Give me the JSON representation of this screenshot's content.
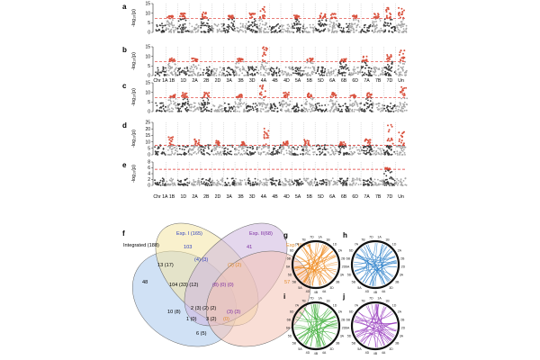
{
  "figure": {
    "panel_labels": [
      "a",
      "b",
      "c",
      "d",
      "e",
      "f",
      "g",
      "h",
      "i",
      "j"
    ],
    "chromosomes": [
      "Chr 1A",
      "1B",
      "1D",
      "2A",
      "2B",
      "2D",
      "3A",
      "3B",
      "3D",
      "4A",
      "4B",
      "4D",
      "5A",
      "5B",
      "5D",
      "6A",
      "6B",
      "6D",
      "7A",
      "7B",
      "7D",
      "Un"
    ],
    "ylabel": "-log₁₀(p)",
    "colors": {
      "dark": "#3a3a3a",
      "light": "#a6a6a6",
      "sig": "#d9533f",
      "threshold": "#e0322c"
    }
  },
  "chart_data": [
    {
      "type": "scatter",
      "panel": "a",
      "ylim": [
        0,
        15
      ],
      "yticks": [
        "0",
        "5",
        "10",
        "15"
      ],
      "threshold": 7.3,
      "xlabel": "",
      "ylabel": "-log₁₀(p)",
      "peaks": [
        {
          "chr": "1B",
          "height": 9
        },
        {
          "chr": "1D",
          "height": 10
        },
        {
          "chr": "2B",
          "height": 11
        },
        {
          "chr": "3A",
          "height": 9
        },
        {
          "chr": "3D",
          "height": 10
        },
        {
          "chr": "4A",
          "height": 14
        },
        {
          "chr": "5A",
          "height": 9
        },
        {
          "chr": "5D",
          "height": 10
        },
        {
          "chr": "6A",
          "height": 10
        },
        {
          "chr": "6D",
          "height": 9
        },
        {
          "chr": "7B",
          "height": 10
        },
        {
          "chr": "7D",
          "height": 13
        },
        {
          "chr": "Un",
          "height": 13
        }
      ]
    },
    {
      "type": "scatter",
      "panel": "b",
      "ylim": [
        0,
        15
      ],
      "yticks": [
        "0",
        "5",
        "10",
        "15"
      ],
      "threshold": 7.3,
      "xlabel": "",
      "ylabel": "-log₁₀(p)",
      "peaks": [
        {
          "chr": "1B",
          "height": 9
        },
        {
          "chr": "2A",
          "height": 9
        },
        {
          "chr": "3B",
          "height": 9
        },
        {
          "chr": "4A",
          "height": 15
        },
        {
          "chr": "5B",
          "height": 9
        },
        {
          "chr": "6B",
          "height": 9
        },
        {
          "chr": "7A",
          "height": 10
        },
        {
          "chr": "7D",
          "height": 11
        },
        {
          "chr": "Un",
          "height": 14
        }
      ]
    },
    {
      "type": "scatter",
      "panel": "c",
      "ylim": [
        0,
        15
      ],
      "yticks": [
        "0",
        "5",
        "10",
        "15"
      ],
      "threshold": 7.3,
      "xlabel": "",
      "ylabel": "-log₁₀(p)",
      "peaks": [
        {
          "chr": "1B",
          "height": 9
        },
        {
          "chr": "1D",
          "height": 10
        },
        {
          "chr": "2B",
          "height": 10
        },
        {
          "chr": "3B",
          "height": 9
        },
        {
          "chr": "4A",
          "height": 14
        },
        {
          "chr": "4D",
          "height": 10
        },
        {
          "chr": "5B",
          "height": 10
        },
        {
          "chr": "6A",
          "height": 10
        },
        {
          "chr": "6D",
          "height": 9
        },
        {
          "chr": "7A",
          "height": 11
        },
        {
          "chr": "Un",
          "height": 13
        }
      ]
    },
    {
      "type": "scatter",
      "panel": "d",
      "ylim": [
        0,
        25
      ],
      "yticks": [
        "0",
        "5",
        "10",
        "15",
        "20",
        "25"
      ],
      "threshold": 7.3,
      "xlabel": "",
      "ylabel": "-log₁₀(p)",
      "peaks": [
        {
          "chr": "1B",
          "height": 14
        },
        {
          "chr": "2A",
          "height": 12
        },
        {
          "chr": "2D",
          "height": 11
        },
        {
          "chr": "3B",
          "height": 10
        },
        {
          "chr": "4A",
          "height": 22
        },
        {
          "chr": "4D",
          "height": 11
        },
        {
          "chr": "5B",
          "height": 12
        },
        {
          "chr": "6B",
          "height": 10
        },
        {
          "chr": "7A",
          "height": 13
        },
        {
          "chr": "7D",
          "height": 24
        },
        {
          "chr": "Un",
          "height": 18
        }
      ]
    },
    {
      "type": "scatter",
      "panel": "e",
      "ylim": [
        0,
        8
      ],
      "yticks": [
        "0",
        "2",
        "4",
        "6",
        "8"
      ],
      "threshold": 5.5,
      "xlabel": "",
      "ylabel": "-log₁₀(p)",
      "peaks": [
        {
          "chr": "7D",
          "height": 6
        }
      ]
    }
  ],
  "venn": {
    "sets": [
      {
        "label": "Integrated (188)",
        "color": "#000000",
        "fill": "#a9c8ec"
      },
      {
        "label": "Exp. I (165)",
        "color": "#2c3ec0",
        "fill": "#f4e6a4"
      },
      {
        "label": "Exp. II(68)",
        "color": "#7a2aa0",
        "fill": "#cdb6df"
      },
      {
        "label": "Exp. III(76)",
        "color": "#e08a2a",
        "fill": "#f4c3b4"
      }
    ],
    "counts": [
      {
        "text": "48",
        "color": "#000000"
      },
      {
        "text": "103",
        "color": "#2c3ec0"
      },
      {
        "text": "41",
        "color": "#7a2aa0"
      },
      {
        "text": "57",
        "color": "#e08a2a"
      },
      {
        "text": "13 (17)",
        "color": "#000000"
      },
      {
        "text": "(4) (3)",
        "color": "#2c3ec0"
      },
      {
        "text": "(2) (2)",
        "color": "#e08a2a"
      },
      {
        "text": "104 (33) (12)",
        "color": "#000000"
      },
      {
        "text": "(8) (0) (0)",
        "color": "#7a2aa0"
      },
      {
        "text": "10 (8)",
        "color": "#000000"
      },
      {
        "text": "2 (3) (2) (2)",
        "color": "#000000"
      },
      {
        "text": "(3) (3)",
        "color": "#7a2aa0"
      },
      {
        "text": "1 (0)",
        "color": "#000000"
      },
      {
        "text": "3 (2)",
        "color": "#000000"
      },
      {
        "text": "(0)",
        "color": "#e08a2a"
      },
      {
        "text": "6 (5)",
        "color": "#000000"
      }
    ]
  },
  "circos": {
    "labels": [
      "1A",
      "1B",
      "1D",
      "2A",
      "2B",
      "2D",
      "3A",
      "3B",
      "3D",
      "4A",
      "4B",
      "4D",
      "5A",
      "5B",
      "5D",
      "6A",
      "6B",
      "6D",
      "7A",
      "7B",
      "7D"
    ],
    "panels": [
      {
        "label": "g",
        "color": "#ef8a1d"
      },
      {
        "label": "h",
        "color": "#2a7fc9"
      },
      {
        "label": "i",
        "color": "#3fae3a"
      },
      {
        "label": "j",
        "color": "#9a3fc0"
      }
    ]
  }
}
